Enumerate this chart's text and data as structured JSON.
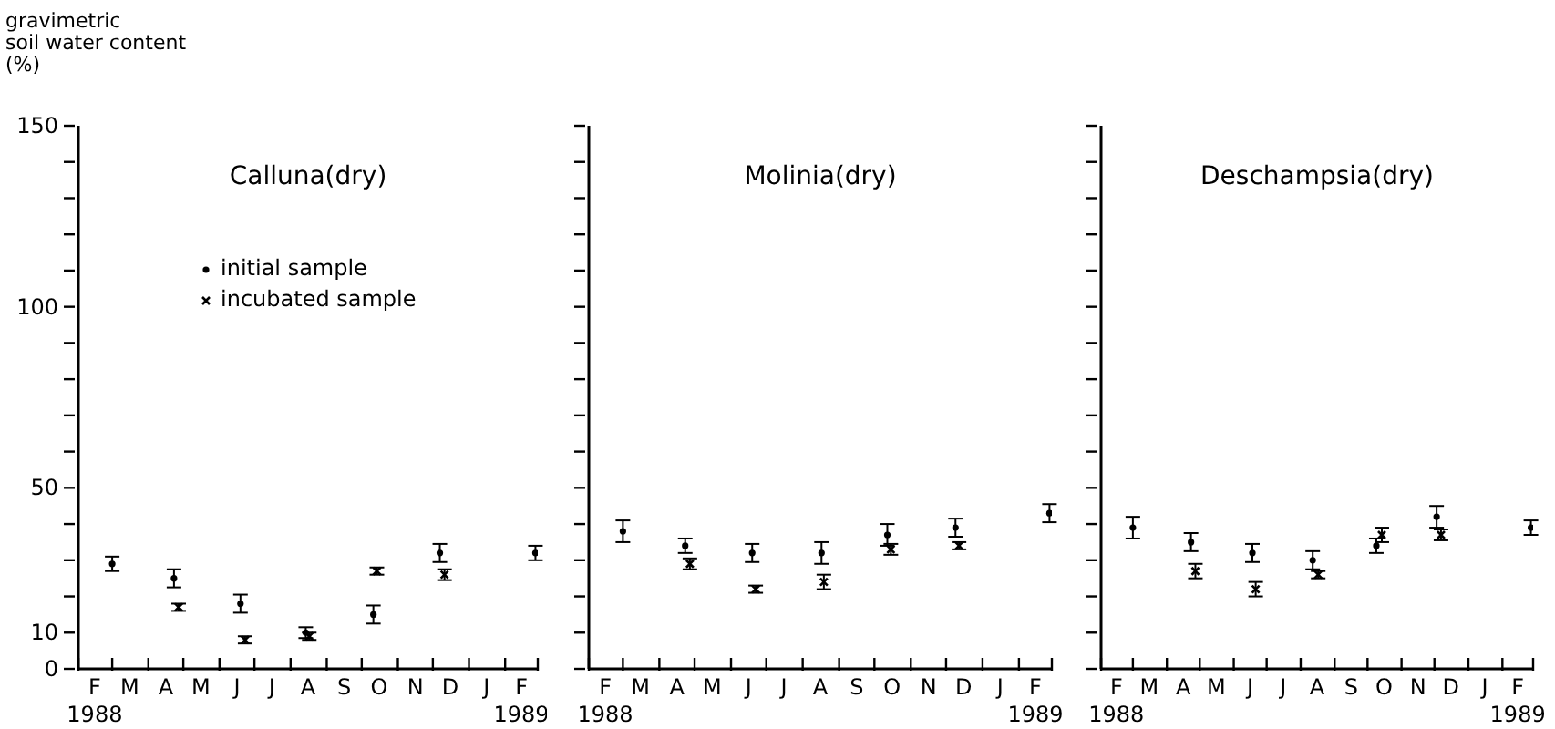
{
  "chart_data": [
    {
      "type": "scatter",
      "title": "Calluna(dry)",
      "ylabel": "gravimetric\nsoil water content\n(%)",
      "legend": "top left",
      "xlim": [
        "1988-02-01",
        "1989-03-01"
      ],
      "ylim": [
        0,
        150
      ],
      "yticks": [
        0,
        10,
        {
          "value": 20,
          "label": null
        },
        {
          "value": 30,
          "label": null
        },
        {
          "value": 40,
          "label": null
        },
        50,
        {
          "value": 60,
          "label": null
        },
        {
          "value": 70,
          "label": null
        },
        {
          "value": 80,
          "label": null
        },
        {
          "value": 90,
          "label": null
        },
        100,
        {
          "value": 110,
          "label": null
        },
        {
          "value": 120,
          "label": null
        },
        {
          "value": 130,
          "label": null
        },
        {
          "value": 140,
          "label": null
        },
        150
      ],
      "xticks": [
        {
          "value": "1988-02-01",
          "label": null
        },
        {
          "value": "1988-03-01",
          "label": null
        },
        {
          "value": "1988-04-01",
          "label": null
        },
        {
          "value": "1988-05-01",
          "label": null
        },
        {
          "value": "1988-06-01",
          "label": null
        },
        {
          "value": "1988-07-01",
          "label": null
        },
        {
          "value": "1988-08-01",
          "label": null
        },
        {
          "value": "1988-09-01",
          "label": null
        },
        {
          "value": "1988-10-01",
          "label": null
        },
        {
          "value": "1988-11-01",
          "label": null
        },
        {
          "value": "1988-12-01",
          "label": null
        },
        {
          "value": "1989-01-01",
          "label": null
        },
        {
          "value": "1989-02-01",
          "label": null
        },
        {
          "value": "1989-03-01",
          "label": null
        },
        {
          "value": "1988-02-15",
          "label": "F\n1988"
        },
        {
          "value": "1988-03-16",
          "label": "M"
        },
        {
          "value": "1988-04-16",
          "label": "A"
        },
        {
          "value": "1988-05-16",
          "label": "M"
        },
        {
          "value": "1988-06-16",
          "label": "J"
        },
        {
          "value": "1988-07-16",
          "label": "J"
        },
        {
          "value": "1988-08-16",
          "label": "A"
        },
        {
          "value": "1988-09-16",
          "label": "S"
        },
        {
          "value": "1988-10-16",
          "label": "O"
        },
        {
          "value": "1988-11-16",
          "label": "N"
        },
        {
          "value": "1988-12-16",
          "label": "D"
        },
        {
          "value": "1989-01-16",
          "label": "J"
        },
        {
          "value": "1989-02-15",
          "label": "F\n1989"
        }
      ],
      "series": [
        {
          "name": "initial sample",
          "color": "#000000",
          "marker": "circle",
          "x": [
            "1988-03-01",
            "1988-04-23",
            "1988-06-19",
            "1988-08-14",
            "1988-10-11",
            "1988-12-07",
            "1989-02-27"
          ],
          "values": [
            29,
            25,
            18,
            10,
            15,
            32,
            32
          ],
          "errors": [
            2,
            2.5,
            2.5,
            1.5,
            2.5,
            2.5,
            2
          ]
        },
        {
          "name": "incubated sample",
          "color": "#000000",
          "marker": "cross",
          "x": [
            "1988-04-27",
            "1988-06-23",
            "1988-08-17",
            "1988-10-14",
            "1988-12-11"
          ],
          "values": [
            17,
            8,
            9,
            27,
            26
          ],
          "errors": [
            1,
            1,
            1,
            1,
            1.5
          ]
        }
      ]
    },
    {
      "type": "scatter",
      "title": "Molinia(dry)",
      "tick_labels": "x",
      "xlim": [
        "1988-02-01",
        "1989-03-01"
      ],
      "ylim": [
        0,
        150
      ],
      "yticks": [
        0,
        10,
        20,
        30,
        40,
        50,
        60,
        70,
        80,
        90,
        100,
        110,
        120,
        130,
        140,
        150
      ],
      "xticks": [
        {
          "value": "1988-02-01",
          "label": null
        },
        {
          "value": "1988-03-01",
          "label": null
        },
        {
          "value": "1988-04-01",
          "label": null
        },
        {
          "value": "1988-05-01",
          "label": null
        },
        {
          "value": "1988-06-01",
          "label": null
        },
        {
          "value": "1988-07-01",
          "label": null
        },
        {
          "value": "1988-08-01",
          "label": null
        },
        {
          "value": "1988-09-01",
          "label": null
        },
        {
          "value": "1988-10-01",
          "label": null
        },
        {
          "value": "1988-11-01",
          "label": null
        },
        {
          "value": "1988-12-01",
          "label": null
        },
        {
          "value": "1989-01-01",
          "label": null
        },
        {
          "value": "1989-02-01",
          "label": null
        },
        {
          "value": "1989-03-01",
          "label": null
        },
        {
          "value": "1988-02-15",
          "label": "F\n1988"
        },
        {
          "value": "1988-03-16",
          "label": "M"
        },
        {
          "value": "1988-04-16",
          "label": "A"
        },
        {
          "value": "1988-05-16",
          "label": "M"
        },
        {
          "value": "1988-06-16",
          "label": "J"
        },
        {
          "value": "1988-07-16",
          "label": "J"
        },
        {
          "value": "1988-08-16",
          "label": "A"
        },
        {
          "value": "1988-09-16",
          "label": "S"
        },
        {
          "value": "1988-10-16",
          "label": "O"
        },
        {
          "value": "1988-11-16",
          "label": "N"
        },
        {
          "value": "1988-12-16",
          "label": "D"
        },
        {
          "value": "1989-01-16",
          "label": "J"
        },
        {
          "value": "1989-02-15",
          "label": "F\n1989"
        }
      ],
      "series": [
        {
          "color": "#000000",
          "marker": "circle",
          "x": [
            "1988-03-01",
            "1988-04-23",
            "1988-06-19",
            "1988-08-17",
            "1988-10-12",
            "1988-12-09",
            "1989-02-27"
          ],
          "values": [
            38,
            34,
            32,
            32,
            37,
            39,
            43
          ],
          "errors": [
            3,
            2,
            2.5,
            3,
            3,
            2.5,
            2.5
          ]
        },
        {
          "color": "#000000",
          "marker": "cross",
          "x": [
            "1988-04-27",
            "1988-06-22",
            "1988-08-19",
            "1988-10-15",
            "1988-12-12"
          ],
          "values": [
            29,
            22,
            24,
            33,
            34
          ],
          "errors": [
            1.5,
            1,
            2,
            1.5,
            1
          ]
        }
      ]
    },
    {
      "type": "scatter",
      "title": "Deschampsia(dry)",
      "tick_labels": "x",
      "xlim": [
        "1988-02-01",
        "1989-03-01"
      ],
      "ylim": [
        0,
        150
      ],
      "yticks": [
        0,
        10,
        20,
        30,
        40,
        50,
        60,
        70,
        80,
        90,
        100,
        110,
        120,
        130,
        140,
        150
      ],
      "xticks": [
        {
          "value": "1988-02-01",
          "label": null
        },
        {
          "value": "1988-03-01",
          "label": null
        },
        {
          "value": "1988-04-01",
          "label": null
        },
        {
          "value": "1988-05-01",
          "label": null
        },
        {
          "value": "1988-06-01",
          "label": null
        },
        {
          "value": "1988-07-01",
          "label": null
        },
        {
          "value": "1988-08-01",
          "label": null
        },
        {
          "value": "1988-09-01",
          "label": null
        },
        {
          "value": "1988-10-01",
          "label": null
        },
        {
          "value": "1988-11-01",
          "label": null
        },
        {
          "value": "1988-12-01",
          "label": null
        },
        {
          "value": "1989-01-01",
          "label": null
        },
        {
          "value": "1989-02-01",
          "label": null
        },
        {
          "value": "1989-03-01",
          "label": null
        },
        {
          "value": "1988-02-15",
          "label": "F\n1988"
        },
        {
          "value": "1988-03-16",
          "label": "M"
        },
        {
          "value": "1988-04-16",
          "label": "A"
        },
        {
          "value": "1988-05-16",
          "label": "M"
        },
        {
          "value": "1988-06-16",
          "label": "J"
        },
        {
          "value": "1988-07-16",
          "label": "J"
        },
        {
          "value": "1988-08-16",
          "label": "A"
        },
        {
          "value": "1988-09-16",
          "label": "S"
        },
        {
          "value": "1988-10-16",
          "label": "O"
        },
        {
          "value": "1988-11-16",
          "label": "N"
        },
        {
          "value": "1988-12-16",
          "label": "D"
        },
        {
          "value": "1989-01-16",
          "label": "J"
        },
        {
          "value": "1989-02-15",
          "label": "F\n1989"
        }
      ],
      "series": [
        {
          "color": "#000000",
          "marker": "circle",
          "x": [
            "1988-03-01",
            "1988-04-23",
            "1988-06-18",
            "1988-08-12",
            "1988-10-09",
            "1988-12-03",
            "1989-02-27"
          ],
          "values": [
            39,
            35,
            32,
            30,
            34,
            42,
            39
          ],
          "errors": [
            3,
            2.5,
            2.5,
            2.5,
            2,
            3,
            2
          ]
        },
        {
          "color": "#000000",
          "marker": "cross",
          "x": [
            "1988-04-27",
            "1988-06-21",
            "1988-08-17",
            "1988-10-14",
            "1988-12-07"
          ],
          "values": [
            27,
            22,
            26,
            37,
            37
          ],
          "errors": [
            2,
            2,
            1,
            2,
            1.5
          ]
        }
      ]
    }
  ]
}
